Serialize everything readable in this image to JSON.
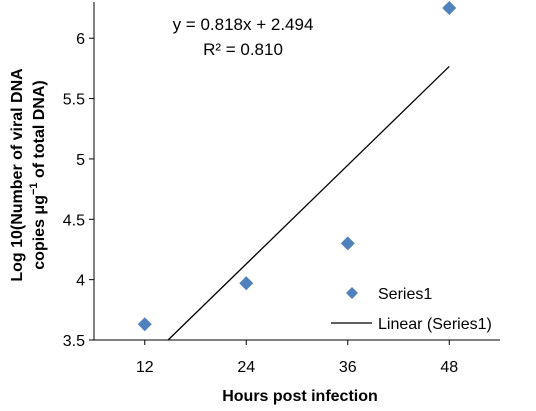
{
  "chart_data": {
    "type": "scatter",
    "xlabel": "Hours post infection",
    "ylabel_line1": "Log 10(Number of viral DNA",
    "ylabel_line2_pre": "copies  μg",
    "ylabel_line2_sup": "−1",
    "ylabel_line2_post": " of total DNA)",
    "x_ticks": [
      12,
      24,
      36,
      48
    ],
    "y_ticks": [
      "3.5",
      "4",
      "4.5",
      "5",
      "5.5",
      "6"
    ],
    "xlim": [
      6,
      54
    ],
    "ylim": [
      3.5,
      6.3
    ],
    "grid": false,
    "legend_position": "bottom-right",
    "series": [
      {
        "name": "Series1",
        "marker": "diamond",
        "color": "#4f81bd",
        "points": [
          {
            "x": 12,
            "y": 3.63
          },
          {
            "x": 24,
            "y": 3.97
          },
          {
            "x": 36,
            "y": 4.3
          },
          {
            "x": 48,
            "y": 6.25
          }
        ]
      }
    ],
    "trendline": {
      "name": "Linear (Series1)",
      "type": "linear",
      "slope": 0.818,
      "intercept": 2.494,
      "color": "#000000",
      "equation": "y = 0.818x + 2.494",
      "r_squared": "R² = 0.810"
    }
  }
}
